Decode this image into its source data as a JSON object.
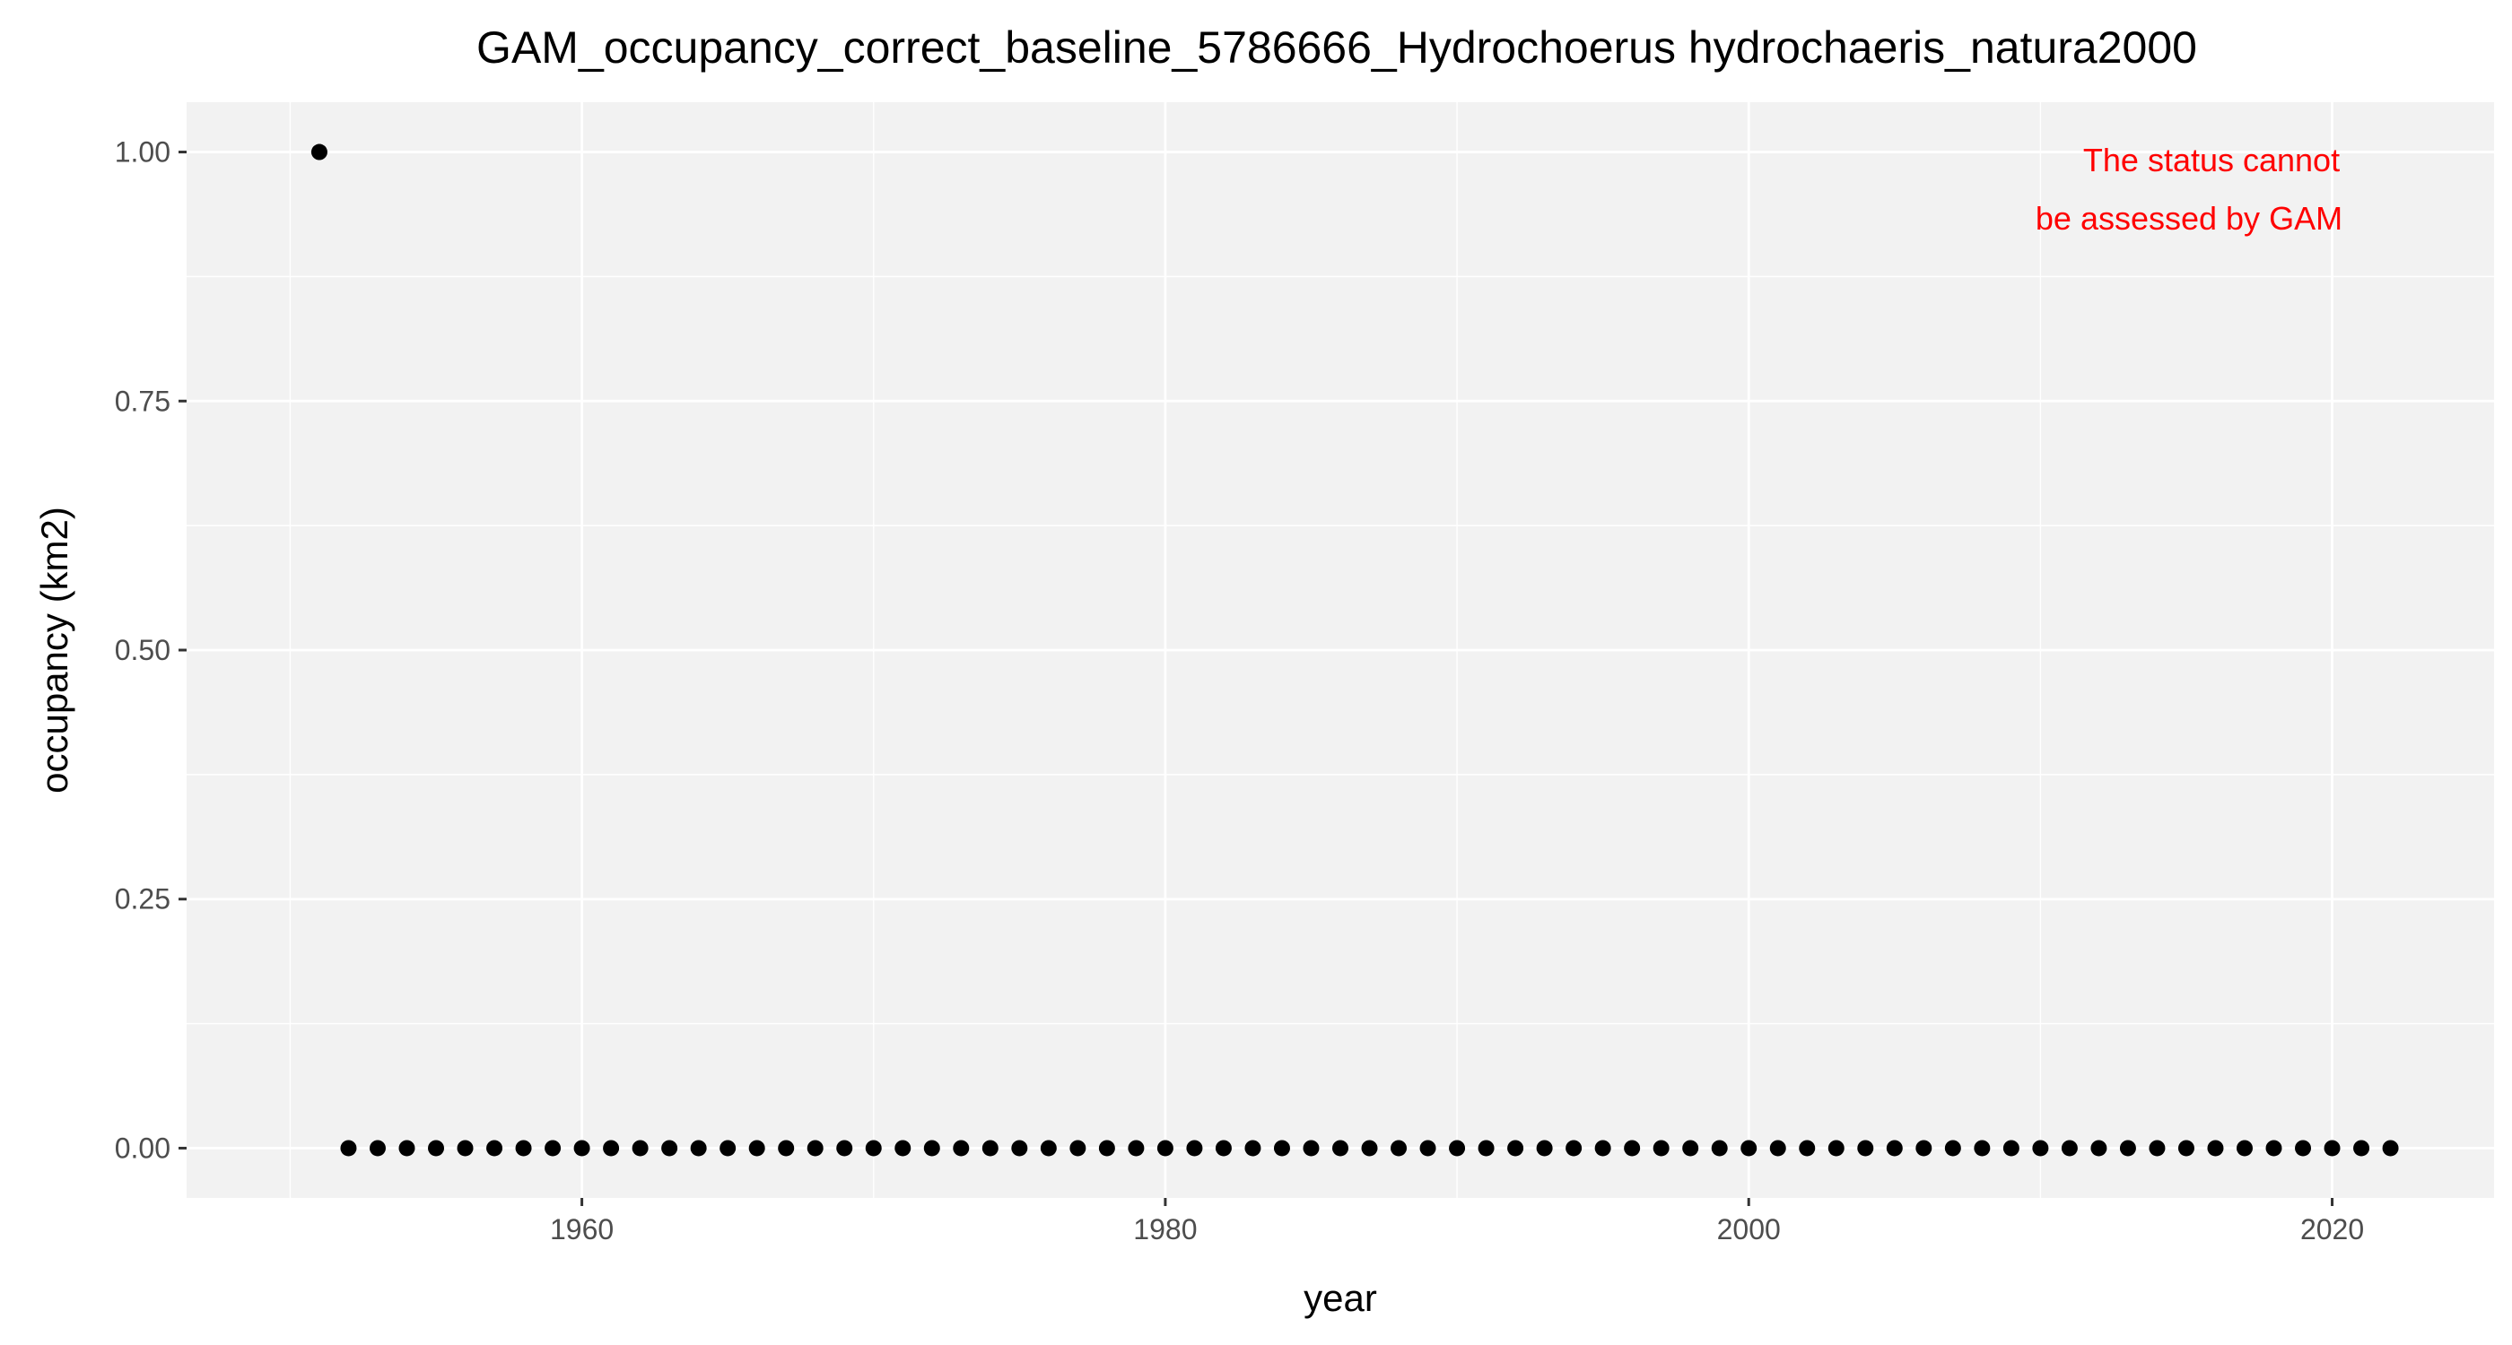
{
  "chart_data": {
    "type": "scatter",
    "title": "GAM_occupancy_correct_baseline_5786666_Hydrochoerus hydrochaeris_natura2000",
    "xlabel": "year",
    "ylabel": "occupancy (km2)",
    "xlim": [
      1946.45,
      2025.55
    ],
    "ylim": [
      -0.05,
      1.05
    ],
    "x_ticks": [
      1960,
      1980,
      2000,
      2020
    ],
    "x_tick_labels": [
      "1960",
      "1980",
      "2000",
      "2020"
    ],
    "x_minor_ticks": [
      1950,
      1970,
      1990,
      2010
    ],
    "y_ticks": [
      0,
      0.25,
      0.5,
      0.75,
      1.0
    ],
    "y_tick_labels": [
      "0.00",
      "0.25",
      "0.50",
      "0.75",
      "1.00"
    ],
    "y_minor_ticks": [
      0.125,
      0.375,
      0.625,
      0.875
    ],
    "grid": true,
    "panel_background": "#f2f2f2",
    "grid_color": "#ffffff",
    "point_color": "#000000",
    "series": [
      {
        "points": [
          {
            "x": 1951,
            "y": 1
          },
          {
            "x": 1952,
            "y": 0
          },
          {
            "x": 1953,
            "y": 0
          },
          {
            "x": 1954,
            "y": 0
          },
          {
            "x": 1955,
            "y": 0
          },
          {
            "x": 1956,
            "y": 0
          },
          {
            "x": 1957,
            "y": 0
          },
          {
            "x": 1958,
            "y": 0
          },
          {
            "x": 1959,
            "y": 0
          },
          {
            "x": 1960,
            "y": 0
          },
          {
            "x": 1961,
            "y": 0
          },
          {
            "x": 1962,
            "y": 0
          },
          {
            "x": 1963,
            "y": 0
          },
          {
            "x": 1964,
            "y": 0
          },
          {
            "x": 1965,
            "y": 0
          },
          {
            "x": 1966,
            "y": 0
          },
          {
            "x": 1967,
            "y": 0
          },
          {
            "x": 1968,
            "y": 0
          },
          {
            "x": 1969,
            "y": 0
          },
          {
            "x": 1970,
            "y": 0
          },
          {
            "x": 1971,
            "y": 0
          },
          {
            "x": 1972,
            "y": 0
          },
          {
            "x": 1973,
            "y": 0
          },
          {
            "x": 1974,
            "y": 0
          },
          {
            "x": 1975,
            "y": 0
          },
          {
            "x": 1976,
            "y": 0
          },
          {
            "x": 1977,
            "y": 0
          },
          {
            "x": 1978,
            "y": 0
          },
          {
            "x": 1979,
            "y": 0
          },
          {
            "x": 1980,
            "y": 0
          },
          {
            "x": 1981,
            "y": 0
          },
          {
            "x": 1982,
            "y": 0
          },
          {
            "x": 1983,
            "y": 0
          },
          {
            "x": 1984,
            "y": 0
          },
          {
            "x": 1985,
            "y": 0
          },
          {
            "x": 1986,
            "y": 0
          },
          {
            "x": 1987,
            "y": 0
          },
          {
            "x": 1988,
            "y": 0
          },
          {
            "x": 1989,
            "y": 0
          },
          {
            "x": 1990,
            "y": 0
          },
          {
            "x": 1991,
            "y": 0
          },
          {
            "x": 1992,
            "y": 0
          },
          {
            "x": 1993,
            "y": 0
          },
          {
            "x": 1994,
            "y": 0
          },
          {
            "x": 1995,
            "y": 0
          },
          {
            "x": 1996,
            "y": 0
          },
          {
            "x": 1997,
            "y": 0
          },
          {
            "x": 1998,
            "y": 0
          },
          {
            "x": 1999,
            "y": 0
          },
          {
            "x": 2000,
            "y": 0
          },
          {
            "x": 2001,
            "y": 0
          },
          {
            "x": 2002,
            "y": 0
          },
          {
            "x": 2003,
            "y": 0
          },
          {
            "x": 2004,
            "y": 0
          },
          {
            "x": 2005,
            "y": 0
          },
          {
            "x": 2006,
            "y": 0
          },
          {
            "x": 2007,
            "y": 0
          },
          {
            "x": 2008,
            "y": 0
          },
          {
            "x": 2009,
            "y": 0
          },
          {
            "x": 2010,
            "y": 0
          },
          {
            "x": 2011,
            "y": 0
          },
          {
            "x": 2012,
            "y": 0
          },
          {
            "x": 2013,
            "y": 0
          },
          {
            "x": 2014,
            "y": 0
          },
          {
            "x": 2015,
            "y": 0
          },
          {
            "x": 2016,
            "y": 0
          },
          {
            "x": 2017,
            "y": 0
          },
          {
            "x": 2018,
            "y": 0
          },
          {
            "x": 2019,
            "y": 0
          },
          {
            "x": 2020,
            "y": 0
          },
          {
            "x": 2021,
            "y": 0
          },
          {
            "x": 2022,
            "y": 0
          }
        ]
      }
    ],
    "annotation": {
      "lines": [
        "The status cannot",
        "be assessed by GAM"
      ],
      "color": "#ff0000",
      "placement": "top-right"
    }
  }
}
